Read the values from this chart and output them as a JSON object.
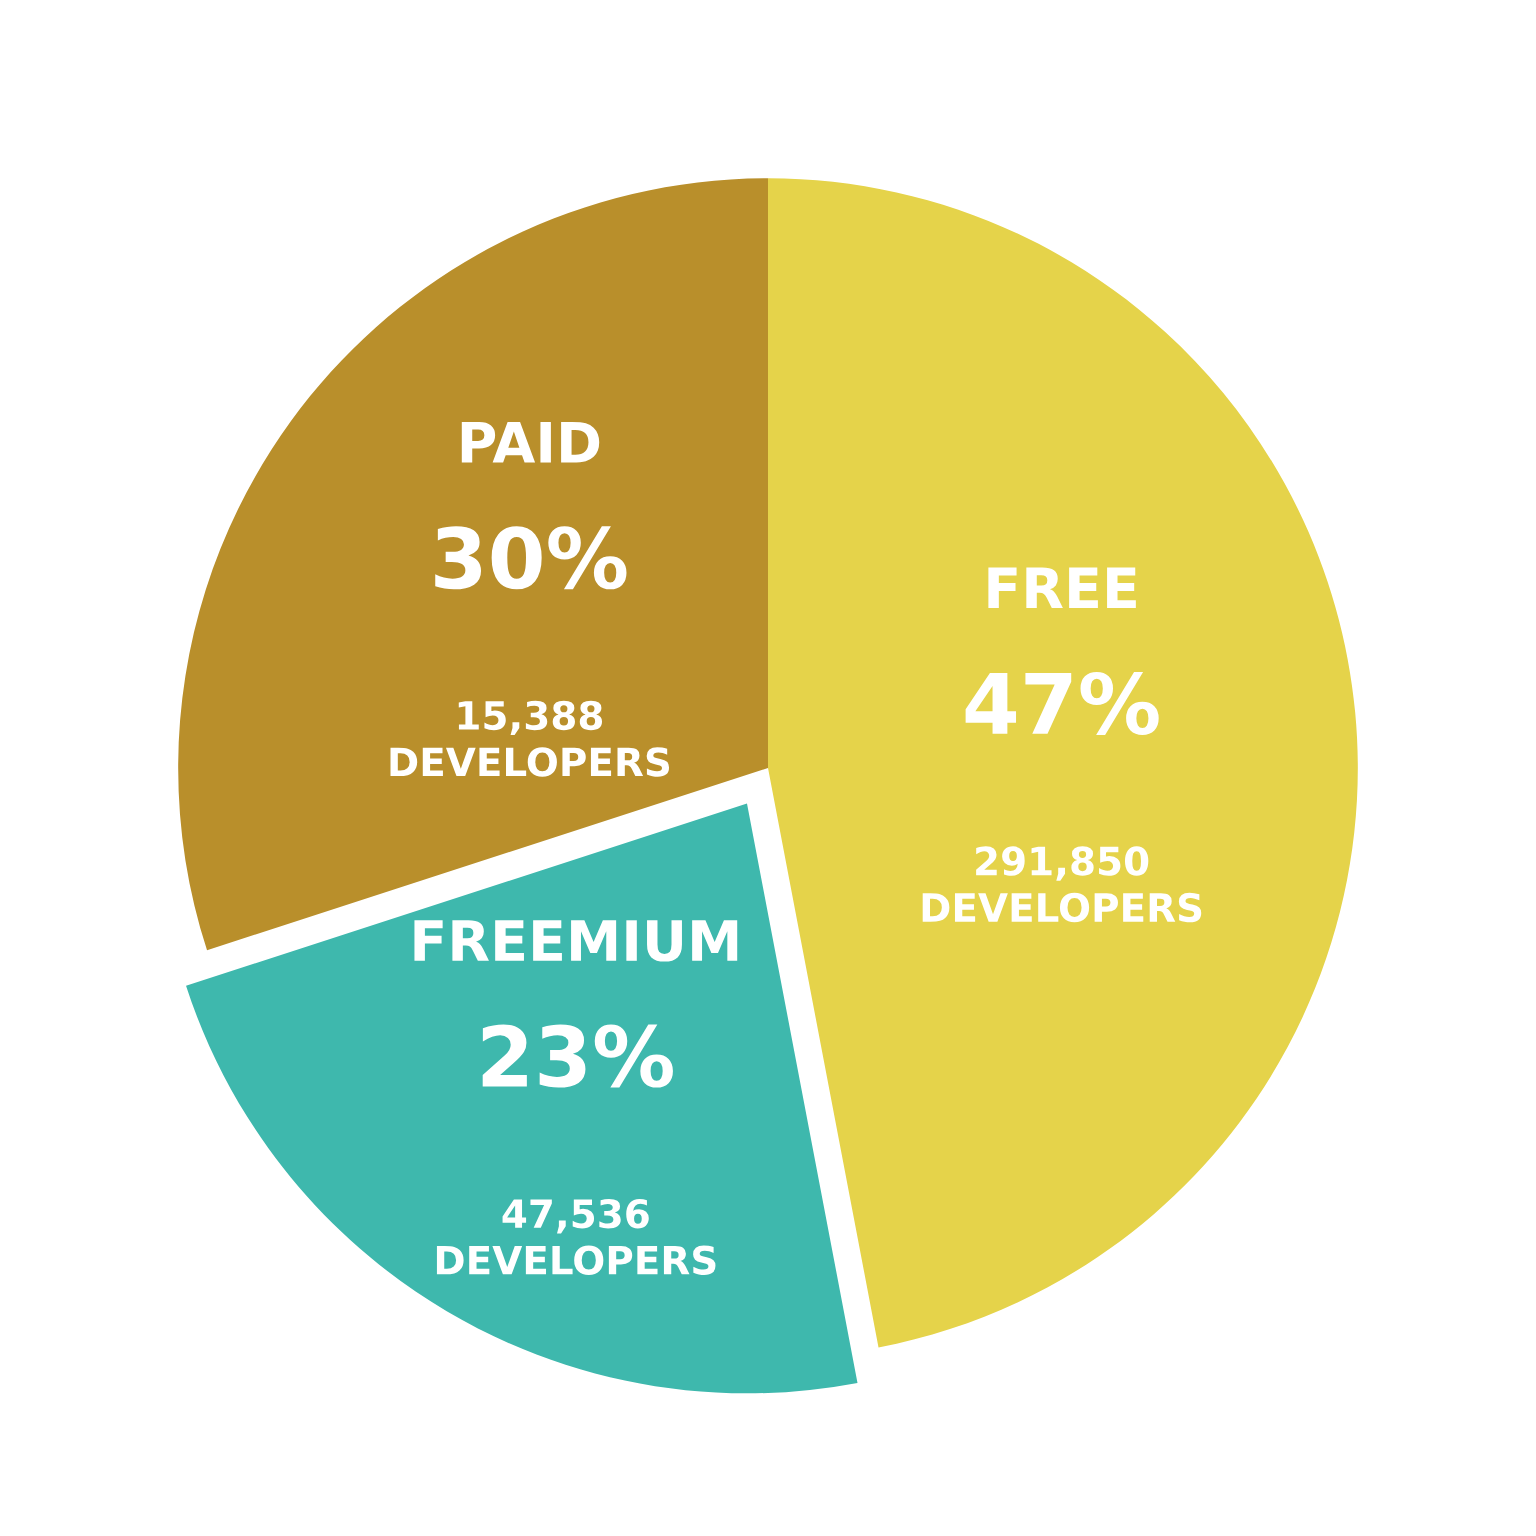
{
  "chart_data": {
    "type": "pie",
    "categories": [
      "FREE",
      "FREEMIUM",
      "PAID"
    ],
    "values": [
      47,
      23,
      30
    ],
    "colors": [
      "#e5d34a",
      "#3eb8ad",
      "#b98f2b"
    ],
    "value_labels": [
      "47%",
      "23%",
      "30%"
    ],
    "annotations": [
      "291,850\nDEVELOPERS",
      "47,536\nDEVELOPERS",
      "15,388\nDEVELOPERS"
    ],
    "legend": false
  }
}
